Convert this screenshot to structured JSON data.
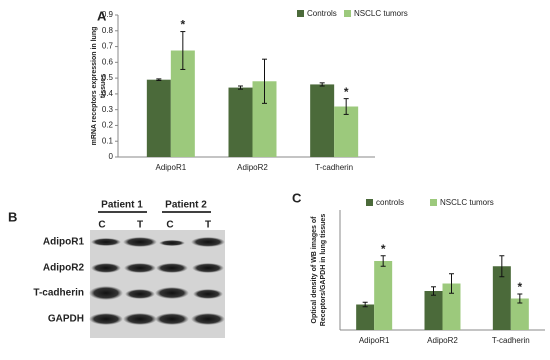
{
  "chart_data": [
    {
      "type": "bar",
      "panel_label": "A",
      "ylabel": [
        "mRNA receptors expression in lung",
        "tissues"
      ],
      "categories": [
        "AdipoR1",
        "AdipoR2",
        "T-cadherin"
      ],
      "series": [
        {
          "name": "Controls",
          "color": "#4b6a3a",
          "values": [
            0.49,
            0.44,
            0.46
          ],
          "errors": [
            0.005,
            0.01,
            0.01
          ]
        },
        {
          "name": "NSCLC tumors",
          "color": "#9cc97c",
          "values": [
            0.675,
            0.48,
            0.32
          ],
          "errors": [
            0.12,
            0.14,
            0.05
          ],
          "annotations": [
            "*",
            null,
            "*"
          ]
        }
      ],
      "ylim": [
        0,
        0.9
      ],
      "yticks": [
        0,
        0.1,
        0.2,
        0.3,
        0.4,
        0.5,
        0.6,
        0.7,
        0.8,
        0.9
      ]
    },
    {
      "type": "bar",
      "panel_label": "C",
      "ylabel": [
        "Optical density of WB images of",
        "Receptors/GAPDH in lung tissues"
      ],
      "categories": [
        "AdipoR1",
        "AdipoR2",
        "T-cadherin"
      ],
      "series": [
        {
          "name": "controls",
          "color": "#4b6a3a",
          "values": [
            1.7,
            2.6,
            4.25
          ],
          "errors": [
            0.15,
            0.28,
            0.7
          ]
        },
        {
          "name": "NSCLC tumors",
          "color": "#9cc97c",
          "values": [
            4.6,
            3.1,
            2.1
          ],
          "errors": [
            0.35,
            0.65,
            0.3
          ],
          "annotations": [
            "*",
            null,
            "*"
          ]
        }
      ],
      "ylim": [
        0,
        8
      ]
    }
  ],
  "blot": {
    "panel_label": "B",
    "groups": [
      "Patient 1",
      "Patient 2"
    ],
    "lanes": [
      "C",
      "T",
      "C",
      "T"
    ],
    "rows": [
      "AdipoR1",
      "AdipoR2",
      "T-cadherin",
      "GAPDH"
    ]
  }
}
